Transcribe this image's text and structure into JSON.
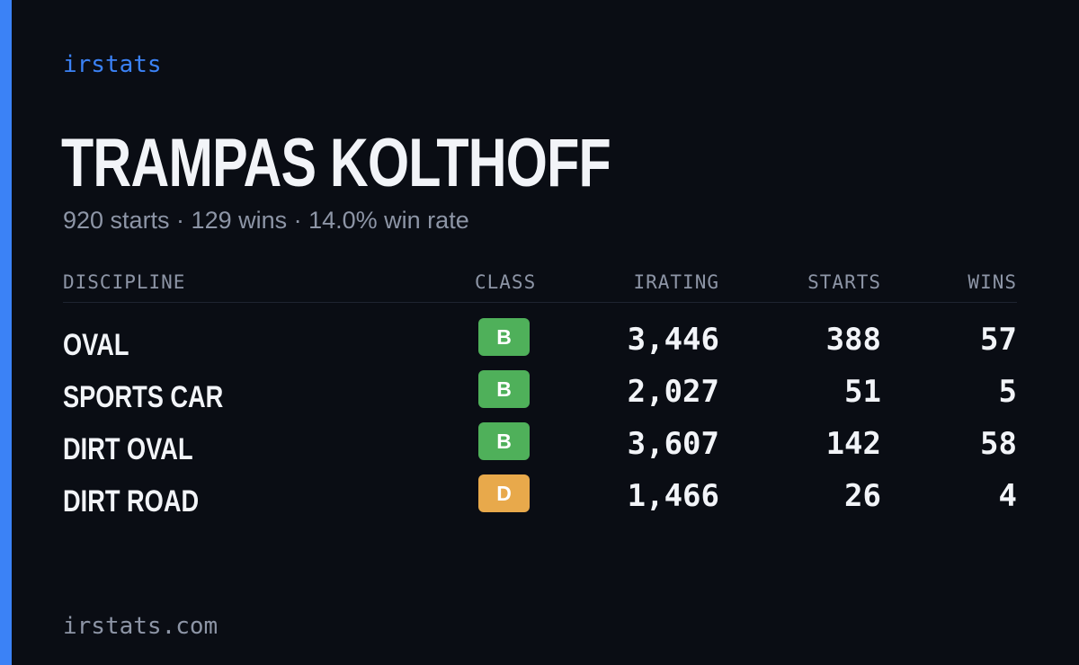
{
  "brand": "irstats",
  "driver": {
    "name": "TRAMPAS KOLTHOFF",
    "summary": "920 starts · 129 wins · 14.0% win rate"
  },
  "table": {
    "headers": {
      "discipline": "DISCIPLINE",
      "class": "CLASS",
      "irating": "IRATING",
      "starts": "STARTS",
      "wins": "WINS"
    },
    "rows": [
      {
        "discipline": "OVAL",
        "class": "B",
        "class_color": "#4fb05a",
        "irating": "3,446",
        "starts": "388",
        "wins": "57"
      },
      {
        "discipline": "SPORTS CAR",
        "class": "B",
        "class_color": "#4fb05a",
        "irating": "2,027",
        "starts": "51",
        "wins": "5"
      },
      {
        "discipline": "DIRT OVAL",
        "class": "B",
        "class_color": "#4fb05a",
        "irating": "3,607",
        "starts": "142",
        "wins": "58"
      },
      {
        "discipline": "DIRT ROAD",
        "class": "D",
        "class_color": "#e8a94b",
        "irating": "1,466",
        "starts": "26",
        "wins": "4"
      }
    ]
  },
  "footer": {
    "url": "irstats.com"
  },
  "colors": {
    "accent": "#3b82f6",
    "background": "#0a0d14",
    "text_primary": "#f2f4f8",
    "text_muted": "#8d95a6"
  }
}
